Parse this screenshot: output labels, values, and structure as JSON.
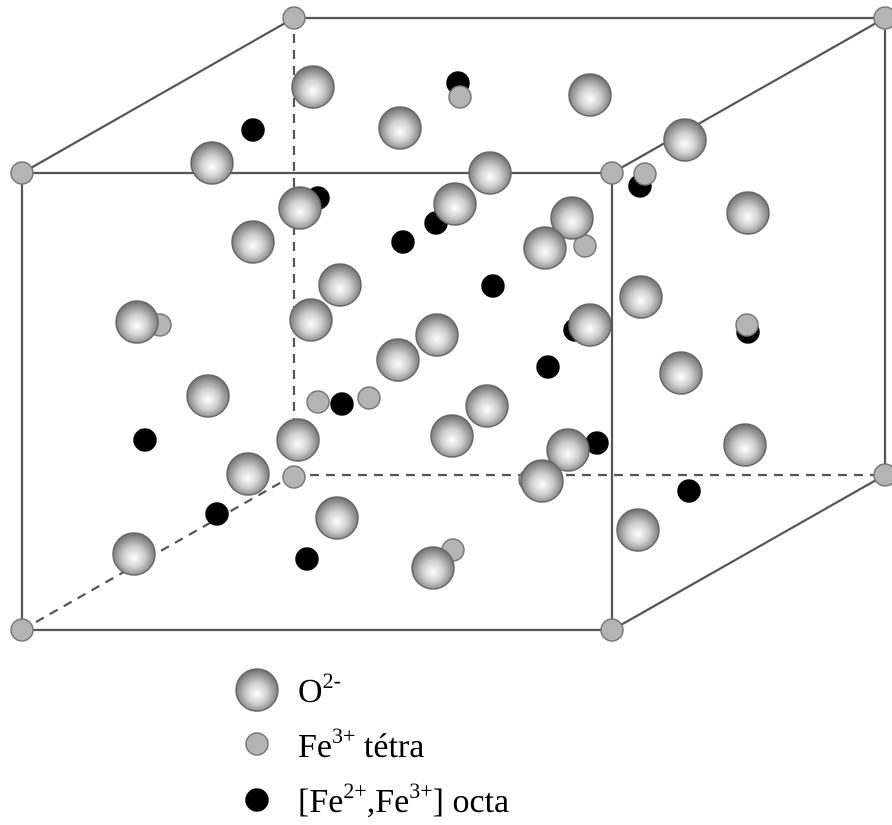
{
  "legend": [
    {
      "parts": [
        "O",
        "2-"
      ]
    },
    {
      "parts": [
        "Fe",
        "3+",
        " tétra"
      ]
    },
    {
      "parts": [
        "[Fe",
        "2+",
        ",Fe",
        "3+",
        "] octa"
      ]
    }
  ]
}
